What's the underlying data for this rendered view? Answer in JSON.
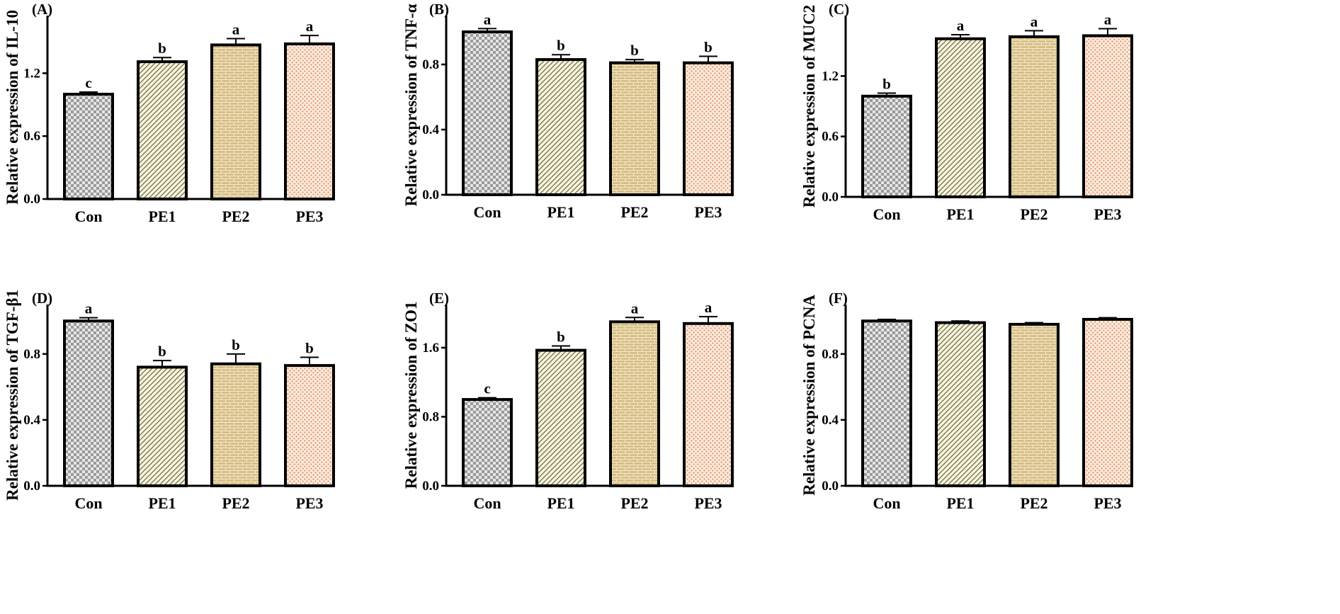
{
  "chart_data": [
    {
      "type": "bar",
      "panel": "(A)",
      "ylabel": "Relative expression of IL-10",
      "categories": [
        "Con",
        "PE1",
        "PE2",
        "PE3"
      ],
      "values": [
        1.0,
        1.31,
        1.47,
        1.48
      ],
      "errors": [
        0.02,
        0.04,
        0.06,
        0.08
      ],
      "significance": [
        "c",
        "b",
        "a",
        "a"
      ],
      "ylim": [
        0,
        1.75
      ],
      "yticks": [
        "0.0",
        "0.6",
        "1.2"
      ]
    },
    {
      "type": "bar",
      "panel": "(B)",
      "ylabel": "Relative expression of TNF-α",
      "categories": [
        "Con",
        "PE1",
        "PE2",
        "PE3"
      ],
      "values": [
        1.0,
        0.83,
        0.81,
        0.81
      ],
      "errors": [
        0.02,
        0.03,
        0.02,
        0.04
      ],
      "significance": [
        "a",
        "b",
        "b",
        "b"
      ],
      "ylim": [
        0,
        1.1
      ],
      "yticks": [
        "0.0",
        "0.4",
        "0.8"
      ]
    },
    {
      "type": "bar",
      "panel": "(C)",
      "ylabel": "Relative expression of MUC2",
      "categories": [
        "Con",
        "PE1",
        "PE2",
        "PE3"
      ],
      "values": [
        1.0,
        1.57,
        1.59,
        1.6
      ],
      "errors": [
        0.03,
        0.04,
        0.06,
        0.07
      ],
      "significance": [
        "b",
        "a",
        "a",
        "a"
      ],
      "ylim": [
        0,
        1.8
      ],
      "yticks": [
        "0.0",
        "0.6",
        "1.2"
      ]
    },
    {
      "type": "bar",
      "panel": "(D)",
      "ylabel": "Relative expression of TGF-β1",
      "categories": [
        "Con",
        "PE1",
        "PE2",
        "PE3"
      ],
      "values": [
        1.0,
        0.72,
        0.74,
        0.73
      ],
      "errors": [
        0.02,
        0.04,
        0.06,
        0.05
      ],
      "significance": [
        "a",
        "b",
        "b",
        "b"
      ],
      "ylim": [
        0,
        1.1
      ],
      "yticks": [
        "0.0",
        "0.4",
        "0.8"
      ]
    },
    {
      "type": "bar",
      "panel": "(E)",
      "ylabel": "Relative expression of ZO1",
      "categories": [
        "Con",
        "PE1",
        "PE2",
        "PE3"
      ],
      "values": [
        1.0,
        1.57,
        1.9,
        1.88
      ],
      "errors": [
        0.02,
        0.05,
        0.05,
        0.08
      ],
      "significance": [
        "c",
        "b",
        "a",
        "a"
      ],
      "ylim": [
        0,
        2.1
      ],
      "yticks": [
        "0.0",
        "0.8",
        "1.6"
      ]
    },
    {
      "type": "bar",
      "panel": "(F)",
      "ylabel": "Relative expression of PCNA",
      "categories": [
        "Con",
        "PE1",
        "PE2",
        "PE3"
      ],
      "values": [
        1.0,
        0.99,
        0.98,
        1.01
      ],
      "errors": [
        0.01,
        0.01,
        0.01,
        0.01
      ],
      "significance": [
        "",
        "",
        "",
        ""
      ],
      "ylim": [
        0,
        1.1
      ],
      "yticks": [
        "0.0",
        "0.4",
        "0.8"
      ]
    }
  ],
  "colors": {
    "axis": "#000000",
    "con_fill_dark": "#9a9a9a",
    "con_fill_light": "#e6e6e6",
    "pe1_bg": "#f8f5df",
    "pe1_line": "#6e6440",
    "pe2_bg": "#d7bf86",
    "pe2_line": "#f5ead0",
    "pe3_bg": "#fbe9dc",
    "pe3_dot": "#d4824e"
  }
}
